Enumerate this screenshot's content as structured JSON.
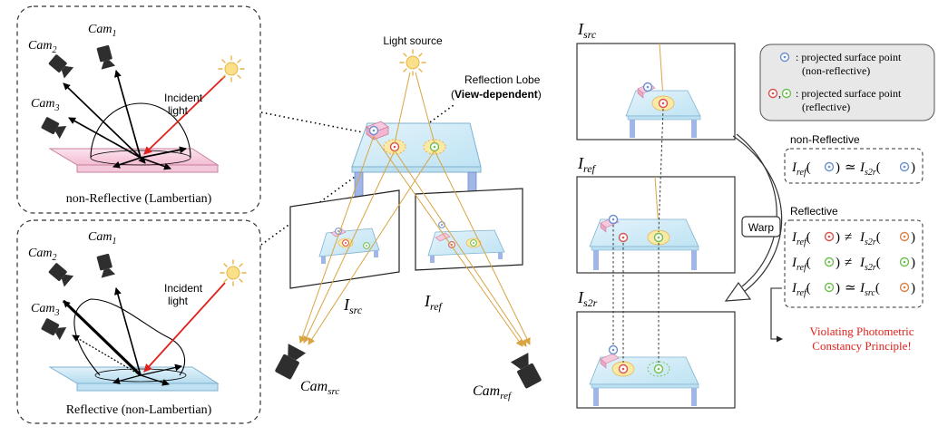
{
  "left_panels": {
    "top": {
      "cams": [
        "Cam",
        "Cam",
        "Cam"
      ],
      "cam_subs": [
        "2",
        "1",
        "3"
      ],
      "incident_label_1": "Incident",
      "incident_label_2": "light",
      "caption": "non-Reflective (Lambertian)"
    },
    "bottom": {
      "cams": [
        "Cam",
        "Cam",
        "Cam"
      ],
      "cam_subs": [
        "2",
        "1",
        "3"
      ],
      "incident_label_1": "Incident",
      "incident_label_2": "light",
      "caption": "Reflective (non-Lambertian)"
    }
  },
  "center": {
    "light_source": "Light source",
    "lobe_label_1": "Reflection Lobe",
    "lobe_label_2_open": "(",
    "lobe_label_2_bold": "View-dependent",
    "lobe_label_2_close": ")",
    "src_label": "I",
    "src_sub": "src",
    "ref_label": "I",
    "ref_sub": "ref",
    "cam_src": "Cam",
    "cam_src_sub": "src",
    "cam_ref": "Cam",
    "cam_ref_sub": "ref"
  },
  "right": {
    "img1_label": "I",
    "img1_sub": "src",
    "img2_label": "I",
    "img2_sub": "ref",
    "img3_label": "I",
    "img3_sub": "s2r",
    "warp": "Warp",
    "legend": {
      "item1_line1": ": projected surface point",
      "item1_line2": "(non-reflective)",
      "item2_sep": ",",
      "item2_line1": ": projected surface point",
      "item2_line2": "(reflective)"
    },
    "nonref_title": "non-Reflective",
    "ref_title": "Reflective",
    "eq": {
      "I": "I",
      "ref": "ref",
      "s2r": "s2r",
      "src": "src",
      "approx": "≃",
      "neq": "≠",
      "open": "(",
      "close": ")"
    },
    "violation_1": "Violating Photometric",
    "violation_2": "Constancy Principle!"
  },
  "colors": {
    "blue_point": "#6b8fd0",
    "red_point": "#d9534f",
    "green_point": "#6fbf4f",
    "orange_point": "#d9824a",
    "incident_red": "#e0211b",
    "ray_gold": "#d9a441",
    "table_top": "#cfeaf6",
    "legs": "#9fb6e6",
    "pink_box": "#f1b7d0",
    "highlight": "#fbe9a6",
    "violation_red": "#e0211b"
  }
}
